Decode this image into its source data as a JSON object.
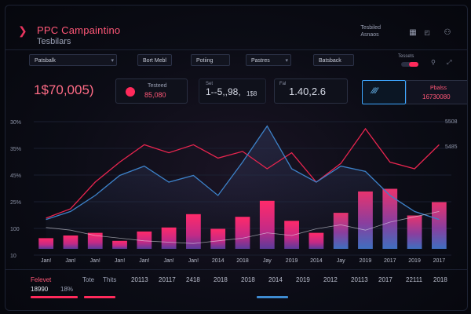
{
  "header": {
    "title": "PPC Campaintino",
    "subtitle": "Tesbilars",
    "right_line1": "Tesbiled",
    "right_line2": "Asnaos",
    "icons": [
      "calendar-icon",
      "settings-icon",
      "user-icon"
    ]
  },
  "filters": [
    {
      "label": "Patsbalk",
      "has_caret": true
    },
    {
      "label": "Bort Mebl",
      "has_caret": false
    },
    {
      "label": "Potiing",
      "has_caret": false
    },
    {
      "label": "Pastres",
      "has_caret": true
    },
    {
      "label": "Batsback",
      "has_caret": false
    }
  ],
  "toggle": {
    "label": "Tessets",
    "on": true
  },
  "kpis": {
    "main_value": "1$70,005)",
    "card1": {
      "label": "Testeed",
      "value": "85,080"
    },
    "card2": {
      "value": "1--5,,98,",
      "side": "1$8",
      "label": "Set"
    },
    "card3": {
      "value": "1.40,2.6",
      "label": "Fal"
    },
    "cta_glyph": "⁄⁄⁄⁄",
    "card4": {
      "label": "Pbalss",
      "value": "16730080"
    }
  },
  "chart_data": {
    "type": "bar",
    "categories": [
      "Jan!",
      "Jan!",
      "Jan!",
      "Jan!",
      "Jan!",
      "Jan!",
      "Jan!",
      "2014",
      "2018",
      "Jay",
      "2019",
      "2014",
      "Jay",
      "2019",
      "2017",
      "2019",
      "2017"
    ],
    "values": [
      8,
      10,
      12,
      6,
      13,
      16,
      26,
      15,
      24,
      36,
      21,
      12,
      27,
      43,
      45,
      25,
      35
    ],
    "series": [
      {
        "values": [
          23,
          30,
          50,
          65,
          78,
          72,
          78,
          68,
          73,
          60,
          72,
          50,
          64,
          90,
          65,
          60,
          78
        ]
      },
      {
        "values": [
          22,
          28,
          40,
          55,
          62,
          50,
          55,
          40,
          65,
          92,
          60,
          50,
          62,
          58,
          40,
          28,
          22
        ]
      },
      {
        "values": [
          16,
          14,
          10,
          8,
          6,
          5,
          4,
          6,
          8,
          12,
          10,
          15,
          18,
          14,
          20,
          24,
          28
        ]
      }
    ],
    "yticks": [
      "30%",
      "35%",
      "45%",
      "25%",
      "100",
      "10"
    ],
    "right_ticks": [
      "5508",
      "5485"
    ],
    "ylim": [
      0,
      100
    ]
  },
  "bottom": {
    "label1": "Felevet",
    "value1": "18990",
    "value1b": "18%",
    "label2": "Tote",
    "label3": "Thits",
    "years": [
      "20113",
      "20117",
      "2418",
      "2018",
      "2018",
      "2014",
      "2019",
      "2012",
      "20113",
      "2017",
      "22111",
      "2018"
    ],
    "colors": {
      "accent": "#ff2a5b",
      "blue": "#3e8bd1"
    }
  }
}
